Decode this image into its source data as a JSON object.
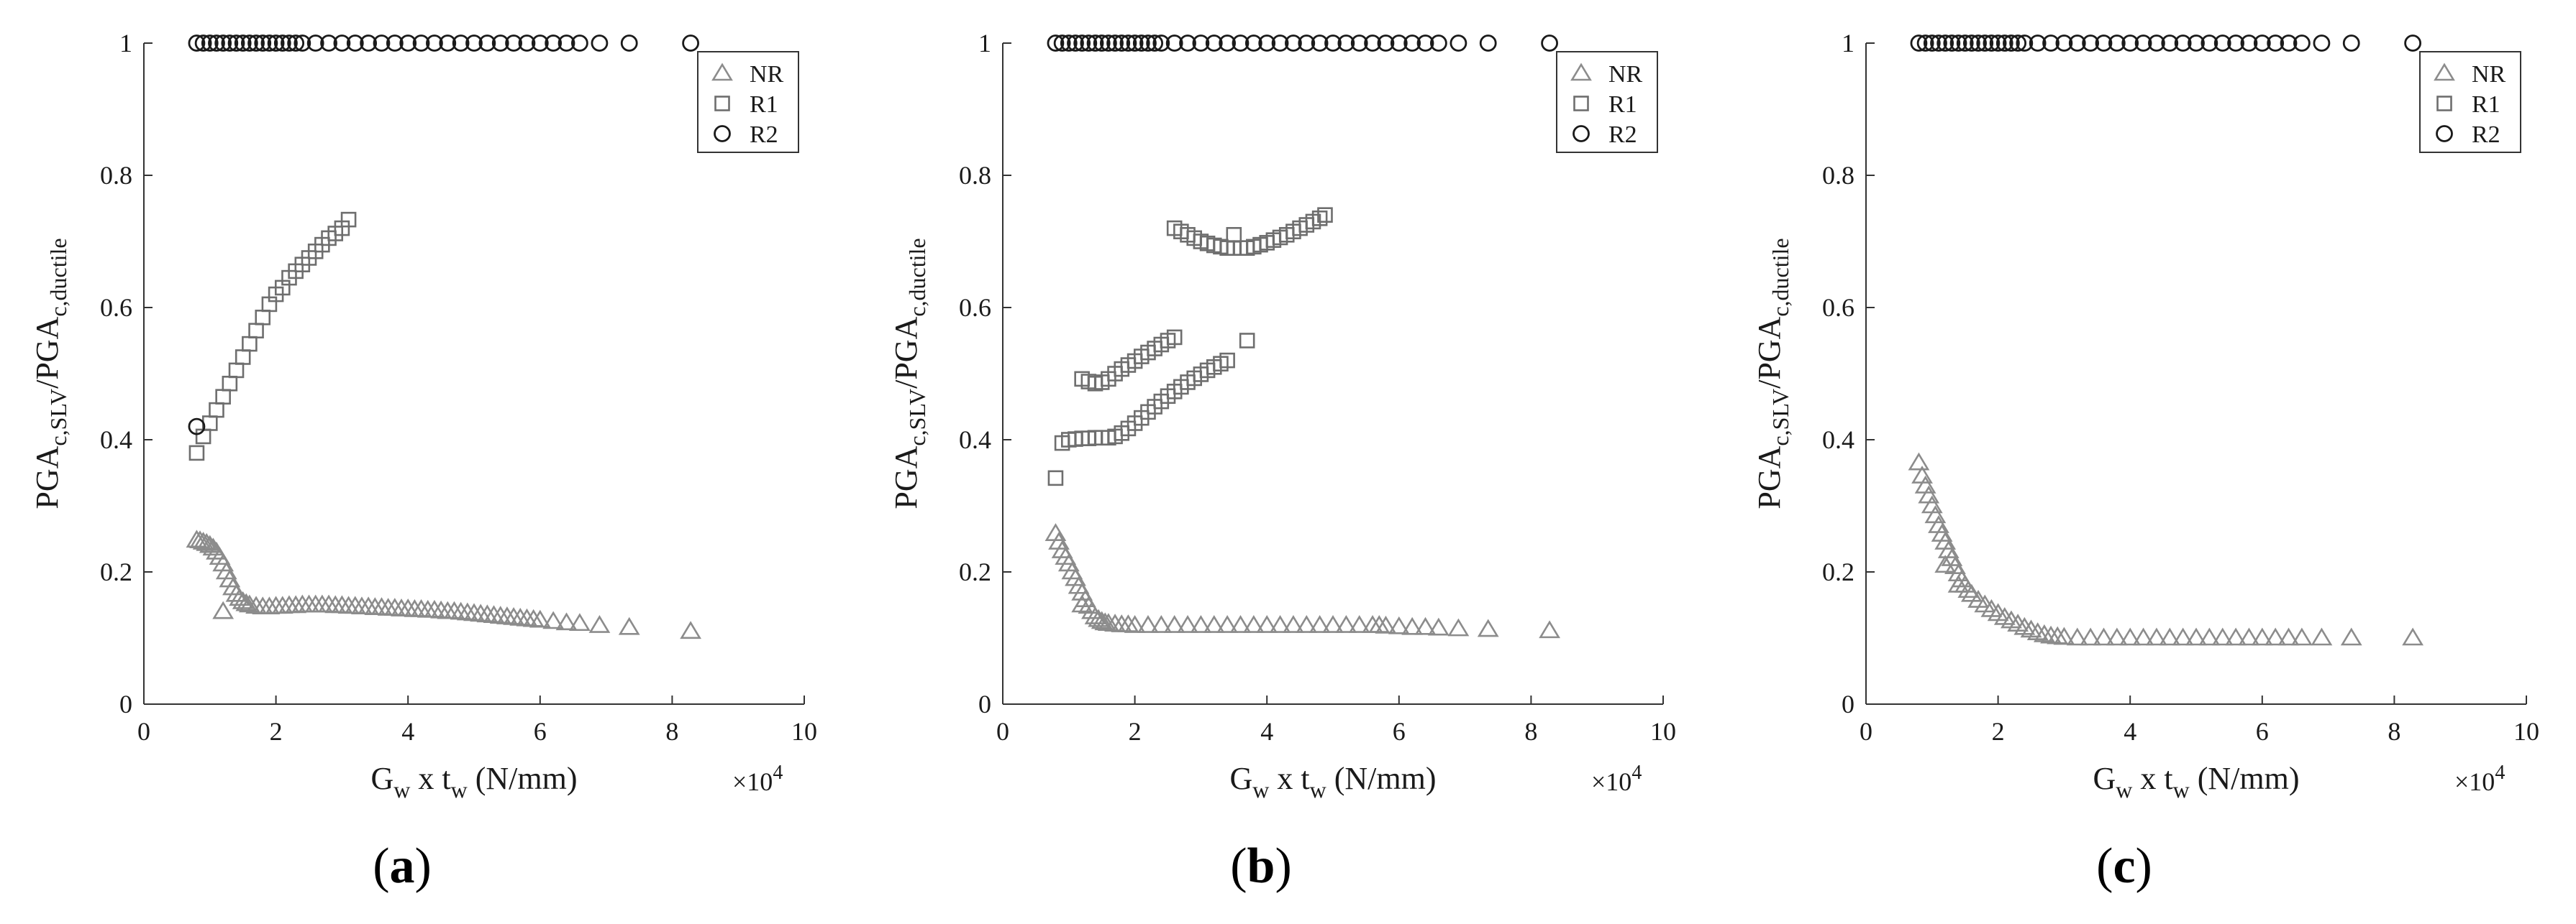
{
  "chart_data": [
    {
      "type": "scatter",
      "panel_label": "a",
      "xlabel": {
        "base": "G",
        "base_sub": "w",
        "mid": " x t",
        "mid_sub": "w",
        "tail": " (N/mm)"
      },
      "ylabel": {
        "p1": "PGA",
        "s1": "c,SLV",
        "p2": "/PGA",
        "s2": "c,ductile"
      },
      "x_exponent": "×10",
      "x_exponent_power": "4",
      "xlim": [
        0,
        100000
      ],
      "ylim": [
        0,
        1
      ],
      "xticks": [
        0,
        20000,
        40000,
        60000,
        80000,
        100000
      ],
      "xtick_labels": [
        "0",
        "2",
        "4",
        "6",
        "8",
        "10"
      ],
      "yticks": [
        0,
        0.2,
        0.4,
        0.6,
        0.8,
        1
      ],
      "ytick_labels": [
        "0",
        "0.2",
        "0.4",
        "0.6",
        "0.8",
        "1"
      ],
      "grid": false,
      "legend_position": "top-right",
      "series": [
        {
          "name": "NR",
          "marker": "triangle",
          "color": "#8c8c8c",
          "x": [
            8000,
            8500,
            9000,
            9500,
            10000,
            10500,
            11000,
            11500,
            12000,
            12500,
            13000,
            13500,
            14000,
            14500,
            15000,
            15500,
            16000,
            17000,
            18000,
            19000,
            20000,
            21000,
            22000,
            23000,
            24000,
            25000,
            26000,
            27000,
            28000,
            29000,
            30000,
            31000,
            32000,
            33000,
            34000,
            35000,
            36000,
            37000,
            38000,
            39000,
            40000,
            41000,
            42000,
            43000,
            44000,
            45000,
            46000,
            47000,
            48000,
            49000,
            50000,
            51000,
            52000,
            53000,
            54000,
            55000,
            56000,
            57000,
            58000,
            59000,
            60000,
            62000,
            64000,
            66000,
            69000,
            73500,
            82800,
            12000
          ],
          "y": [
            0.248,
            0.247,
            0.245,
            0.243,
            0.24,
            0.236,
            0.23,
            0.222,
            0.212,
            0.2,
            0.188,
            0.176,
            0.166,
            0.16,
            0.155,
            0.152,
            0.15,
            0.148,
            0.147,
            0.147,
            0.148,
            0.148,
            0.149,
            0.149,
            0.15,
            0.15,
            0.15,
            0.15,
            0.15,
            0.149,
            0.149,
            0.148,
            0.148,
            0.147,
            0.147,
            0.146,
            0.146,
            0.145,
            0.145,
            0.144,
            0.144,
            0.143,
            0.143,
            0.142,
            0.142,
            0.141,
            0.14,
            0.14,
            0.139,
            0.138,
            0.137,
            0.136,
            0.135,
            0.134,
            0.133,
            0.132,
            0.131,
            0.13,
            0.129,
            0.128,
            0.127,
            0.125,
            0.123,
            0.122,
            0.119,
            0.116,
            0.11,
            0.14
          ]
        },
        {
          "name": "R1",
          "marker": "square",
          "color": "#6e6e6e",
          "x": [
            8000,
            9000,
            10000,
            11000,
            12000,
            13000,
            14000,
            15000,
            16000,
            17000,
            18000,
            19000,
            20000,
            21000,
            22000,
            23000,
            24000,
            25000,
            26000,
            27000,
            28000,
            29000,
            30000,
            31000
          ],
          "y": [
            0.38,
            0.405,
            0.425,
            0.445,
            0.465,
            0.485,
            0.505,
            0.525,
            0.545,
            0.565,
            0.585,
            0.605,
            0.62,
            0.63,
            0.645,
            0.655,
            0.665,
            0.675,
            0.685,
            0.695,
            0.705,
            0.712,
            0.72,
            0.733
          ]
        },
        {
          "name": "R2",
          "marker": "circle",
          "color": "#1a1a1a",
          "x": [
            8000,
            9000,
            10000,
            11000,
            12000,
            13000,
            14000,
            15000,
            16000,
            17000,
            18000,
            19000,
            20000,
            21000,
            22000,
            23000,
            24000,
            26000,
            28000,
            30000,
            32000,
            34000,
            36000,
            38000,
            40000,
            42000,
            44000,
            46000,
            48000,
            50000,
            52000,
            54000,
            56000,
            58000,
            60000,
            62000,
            64000,
            66000,
            69000,
            73500,
            82800,
            8000
          ],
          "y": [
            1,
            1,
            1,
            1,
            1,
            1,
            1,
            1,
            1,
            1,
            1,
            1,
            1,
            1,
            1,
            1,
            1,
            1,
            1,
            1,
            1,
            1,
            1,
            1,
            1,
            1,
            1,
            1,
            1,
            1,
            1,
            1,
            1,
            1,
            1,
            1,
            1,
            1,
            1,
            1,
            1,
            0.42
          ]
        }
      ]
    },
    {
      "type": "scatter",
      "panel_label": "b",
      "xlabel": {
        "base": "G",
        "base_sub": "w",
        "mid": " x t",
        "mid_sub": "w",
        "tail": " (N/mm)"
      },
      "ylabel": {
        "p1": "PGA",
        "s1": "c,SLV",
        "p2": "/PGA",
        "s2": "c,ductile"
      },
      "x_exponent": "×10",
      "x_exponent_power": "4",
      "xlim": [
        0,
        100000
      ],
      "ylim": [
        0,
        1
      ],
      "xticks": [
        0,
        20000,
        40000,
        60000,
        80000,
        100000
      ],
      "xtick_labels": [
        "0",
        "2",
        "4",
        "6",
        "8",
        "10"
      ],
      "yticks": [
        0,
        0.2,
        0.4,
        0.6,
        0.8,
        1
      ],
      "ytick_labels": [
        "0",
        "0.2",
        "0.4",
        "0.6",
        "0.8",
        "1"
      ],
      "grid": false,
      "legend_position": "top-right",
      "series": [
        {
          "name": "NR",
          "marker": "triangle",
          "color": "#8c8c8c",
          "x": [
            8000,
            8500,
            9000,
            9500,
            10000,
            10500,
            11000,
            11500,
            12000,
            12500,
            13000,
            13500,
            14000,
            14500,
            15000,
            15500,
            16000,
            17000,
            18000,
            19000,
            20000,
            22000,
            24000,
            26000,
            28000,
            30000,
            32000,
            34000,
            36000,
            38000,
            40000,
            42000,
            44000,
            46000,
            48000,
            50000,
            52000,
            54000,
            56000,
            57000,
            58000,
            60000,
            62000,
            64000,
            66000,
            69000,
            73500,
            82800,
            12000
          ],
          "y": [
            0.258,
            0.245,
            0.232,
            0.222,
            0.212,
            0.2,
            0.19,
            0.178,
            0.168,
            0.158,
            0.148,
            0.14,
            0.132,
            0.128,
            0.125,
            0.123,
            0.122,
            0.121,
            0.12,
            0.12,
            0.119,
            0.119,
            0.119,
            0.119,
            0.119,
            0.119,
            0.119,
            0.119,
            0.119,
            0.119,
            0.119,
            0.119,
            0.119,
            0.119,
            0.119,
            0.119,
            0.119,
            0.119,
            0.119,
            0.119,
            0.118,
            0.117,
            0.116,
            0.116,
            0.115,
            0.114,
            0.113,
            0.111,
            0.15
          ]
        },
        {
          "name": "R1",
          "marker": "square",
          "color": "#6e6e6e",
          "x": [
            8000,
            9000,
            10000,
            11000,
            12000,
            13000,
            14000,
            15000,
            16000,
            17000,
            18000,
            19000,
            20000,
            21000,
            22000,
            23000,
            24000,
            25000,
            26000,
            27000,
            28000,
            29000,
            30000,
            31000,
            32000,
            33000,
            34000,
            37000,
            12000,
            13000,
            14000,
            15000,
            16000,
            17000,
            18000,
            19000,
            20000,
            21000,
            22000,
            23000,
            24000,
            25000,
            26000,
            26000,
            27000,
            28000,
            29000,
            30000,
            31000,
            32000,
            33000,
            34000,
            35000,
            36000,
            37000,
            38000,
            39000,
            40000,
            41000,
            42000,
            43000,
            44000,
            45000,
            46000,
            47000,
            48000,
            48800,
            35000
          ],
          "y": [
            0.342,
            0.395,
            0.4,
            0.401,
            0.402,
            0.402,
            0.403,
            0.403,
            0.403,
            0.405,
            0.41,
            0.417,
            0.425,
            0.433,
            0.442,
            0.45,
            0.458,
            0.466,
            0.473,
            0.48,
            0.487,
            0.493,
            0.499,
            0.505,
            0.51,
            0.515,
            0.52,
            0.55,
            0.492,
            0.488,
            0.485,
            0.487,
            0.492,
            0.5,
            0.507,
            0.513,
            0.519,
            0.526,
            0.532,
            0.538,
            0.544,
            0.55,
            0.555,
            0.72,
            0.715,
            0.71,
            0.705,
            0.7,
            0.697,
            0.694,
            0.692,
            0.69,
            0.69,
            0.69,
            0.69,
            0.692,
            0.695,
            0.698,
            0.702,
            0.706,
            0.71,
            0.715,
            0.72,
            0.725,
            0.73,
            0.735,
            0.74,
            0.71
          ]
        },
        {
          "name": "R2",
          "marker": "circle",
          "color": "#1a1a1a",
          "x": [
            8000,
            9000,
            10000,
            11000,
            12000,
            13000,
            14000,
            15000,
            16000,
            17000,
            18000,
            19000,
            20000,
            21000,
            22000,
            23000,
            24000,
            26000,
            28000,
            30000,
            32000,
            34000,
            36000,
            38000,
            40000,
            42000,
            44000,
            46000,
            48000,
            50000,
            52000,
            54000,
            56000,
            58000,
            60000,
            62000,
            64000,
            66000,
            69000,
            73500,
            82800
          ],
          "y": [
            1,
            1,
            1,
            1,
            1,
            1,
            1,
            1,
            1,
            1,
            1,
            1,
            1,
            1,
            1,
            1,
            1,
            1,
            1,
            1,
            1,
            1,
            1,
            1,
            1,
            1,
            1,
            1,
            1,
            1,
            1,
            1,
            1,
            1,
            1,
            1,
            1,
            1,
            1,
            1,
            1
          ]
        }
      ]
    },
    {
      "type": "scatter",
      "panel_label": "c",
      "xlabel": {
        "base": "G",
        "base_sub": "w",
        "mid": " x t",
        "mid_sub": "w",
        "tail": " (N/mm)"
      },
      "ylabel": {
        "p1": "PGA",
        "s1": "c,SLV",
        "p2": "/PGA",
        "s2": "c,ductile"
      },
      "x_exponent": "×10",
      "x_exponent_power": "4",
      "xlim": [
        0,
        100000
      ],
      "ylim": [
        0,
        1
      ],
      "xticks": [
        0,
        20000,
        40000,
        60000,
        80000,
        100000
      ],
      "xtick_labels": [
        "0",
        "2",
        "4",
        "6",
        "8",
        "10"
      ],
      "yticks": [
        0,
        0.2,
        0.4,
        0.6,
        0.8,
        1
      ],
      "ytick_labels": [
        "0",
        "0.2",
        "0.4",
        "0.6",
        "0.8",
        "1"
      ],
      "grid": false,
      "legend_position": "top-right",
      "series": [
        {
          "name": "NR",
          "marker": "triangle",
          "color": "#8c8c8c",
          "x": [
            8000,
            8500,
            9000,
            9500,
            10000,
            10500,
            11000,
            11500,
            12000,
            12500,
            13000,
            13500,
            14000,
            14500,
            15000,
            15500,
            16000,
            17000,
            18000,
            19000,
            20000,
            21000,
            22000,
            23000,
            24000,
            25000,
            26000,
            27000,
            28000,
            29000,
            30000,
            32000,
            34000,
            36000,
            38000,
            40000,
            42000,
            44000,
            46000,
            48000,
            50000,
            52000,
            54000,
            56000,
            58000,
            60000,
            62000,
            64000,
            66000,
            69000,
            73500,
            82800,
            12000,
            14000
          ],
          "y": [
            0.365,
            0.345,
            0.33,
            0.315,
            0.3,
            0.285,
            0.27,
            0.257,
            0.245,
            0.232,
            0.22,
            0.208,
            0.197,
            0.188,
            0.18,
            0.172,
            0.166,
            0.157,
            0.15,
            0.143,
            0.137,
            0.131,
            0.126,
            0.121,
            0.116,
            0.112,
            0.108,
            0.105,
            0.103,
            0.102,
            0.101,
            0.1,
            0.1,
            0.1,
            0.1,
            0.1,
            0.1,
            0.1,
            0.1,
            0.1,
            0.1,
            0.1,
            0.1,
            0.1,
            0.1,
            0.1,
            0.1,
            0.1,
            0.1,
            0.1,
            0.1,
            0.1,
            0.21,
            0.18
          ]
        },
        {
          "name": "R1",
          "marker": "square",
          "color": "#6e6e6e",
          "x": [],
          "y": []
        },
        {
          "name": "R2",
          "marker": "circle",
          "color": "#1a1a1a",
          "x": [
            8000,
            9000,
            10000,
            11000,
            12000,
            13000,
            14000,
            15000,
            16000,
            17000,
            18000,
            19000,
            20000,
            21000,
            22000,
            23000,
            24000,
            26000,
            28000,
            30000,
            32000,
            34000,
            36000,
            38000,
            40000,
            42000,
            44000,
            46000,
            48000,
            50000,
            52000,
            54000,
            56000,
            58000,
            60000,
            62000,
            64000,
            66000,
            69000,
            73500,
            82800
          ],
          "y": [
            1,
            1,
            1,
            1,
            1,
            1,
            1,
            1,
            1,
            1,
            1,
            1,
            1,
            1,
            1,
            1,
            1,
            1,
            1,
            1,
            1,
            1,
            1,
            1,
            1,
            1,
            1,
            1,
            1,
            1,
            1,
            1,
            1,
            1,
            1,
            1,
            1,
            1,
            1,
            1,
            1
          ]
        }
      ]
    }
  ]
}
